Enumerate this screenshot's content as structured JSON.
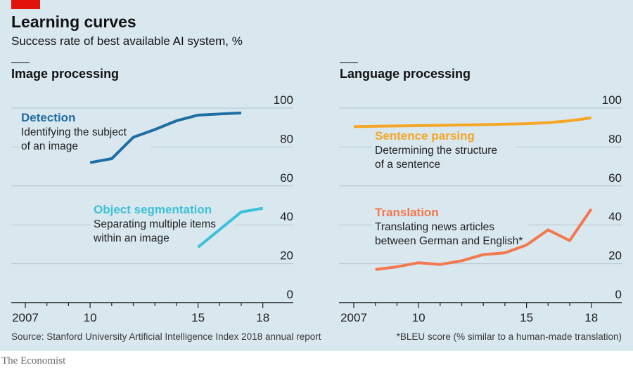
{
  "title": "Learning curves",
  "subtitle": "Success rate of best available AI system, %",
  "source": "Source: Stanford University Artificial Intelligence Index 2018 annual report",
  "footnote": "*BLEU score (% similar to a human-made translation)",
  "brand": "The Economist",
  "colors": {
    "background": "#d9e7ef",
    "brand_red": "#e3120b",
    "detection": "#1f6ea3",
    "segmentation": "#3cc1d6",
    "parsing": "#f5a623",
    "translation": "#f4774d"
  },
  "chart_data": [
    {
      "type": "line",
      "title": "Image processing",
      "xlim": [
        2007,
        2019
      ],
      "ylim": [
        0,
        100
      ],
      "x_ticks": [
        2007,
        2010,
        2015,
        2018
      ],
      "x_tick_labels": [
        "2007",
        "10",
        "15",
        "18"
      ],
      "y_ticks": [
        0,
        20,
        40,
        60,
        80,
        100
      ],
      "y_tick_labels": [
        "0",
        "20",
        "40",
        "60",
        "80",
        "100"
      ],
      "grid": true,
      "series": [
        {
          "name": "Detection",
          "description": "Identifying the subject of an image",
          "desc_lines": [
            "Identifying the subject",
            "of an image"
          ],
          "color": "#1f6ea3",
          "x": [
            2010,
            2011,
            2012,
            2013,
            2014,
            2015,
            2016,
            2017
          ],
          "y": [
            72,
            74,
            85,
            89,
            93.5,
            96.4,
            97,
            97.5
          ]
        },
        {
          "name": "Object segmentation",
          "description": "Separating multiple items within an image",
          "desc_lines": [
            "Separating multiple items",
            "within an image"
          ],
          "color": "#3cc1d6",
          "x": [
            2015,
            2017,
            2018
          ],
          "y": [
            28.5,
            46.6,
            48.5
          ]
        }
      ]
    },
    {
      "type": "line",
      "title": "Language processing",
      "xlim": [
        2007,
        2019
      ],
      "ylim": [
        0,
        100
      ],
      "x_ticks": [
        2007,
        2010,
        2015,
        2018
      ],
      "x_tick_labels": [
        "2007",
        "10",
        "15",
        "18"
      ],
      "y_ticks": [
        0,
        20,
        40,
        60,
        80,
        100
      ],
      "y_tick_labels": [
        "0",
        "20",
        "40",
        "60",
        "80",
        "100"
      ],
      "grid": true,
      "series": [
        {
          "name": "Sentence parsing",
          "description": "Determining the structure of a sentence",
          "desc_lines": [
            "Determining the structure",
            "of a sentence"
          ],
          "color": "#f5a623",
          "x": [
            2007,
            2010,
            2013,
            2015,
            2016,
            2017,
            2018
          ],
          "y": [
            90.5,
            91,
            91.5,
            92,
            92.5,
            93.5,
            95
          ]
        },
        {
          "name": "Translation",
          "description": "Translating news articles between German and English*",
          "desc_lines": [
            "Translating news articles",
            "between German and English*"
          ],
          "color": "#f4774d",
          "x": [
            2008,
            2009,
            2010,
            2011,
            2012,
            2013,
            2014,
            2015,
            2016,
            2017,
            2018
          ],
          "y": [
            17,
            18.4,
            20.5,
            19.6,
            21.5,
            24.7,
            25.6,
            29.6,
            37.4,
            31.9,
            48.1
          ]
        }
      ]
    }
  ]
}
